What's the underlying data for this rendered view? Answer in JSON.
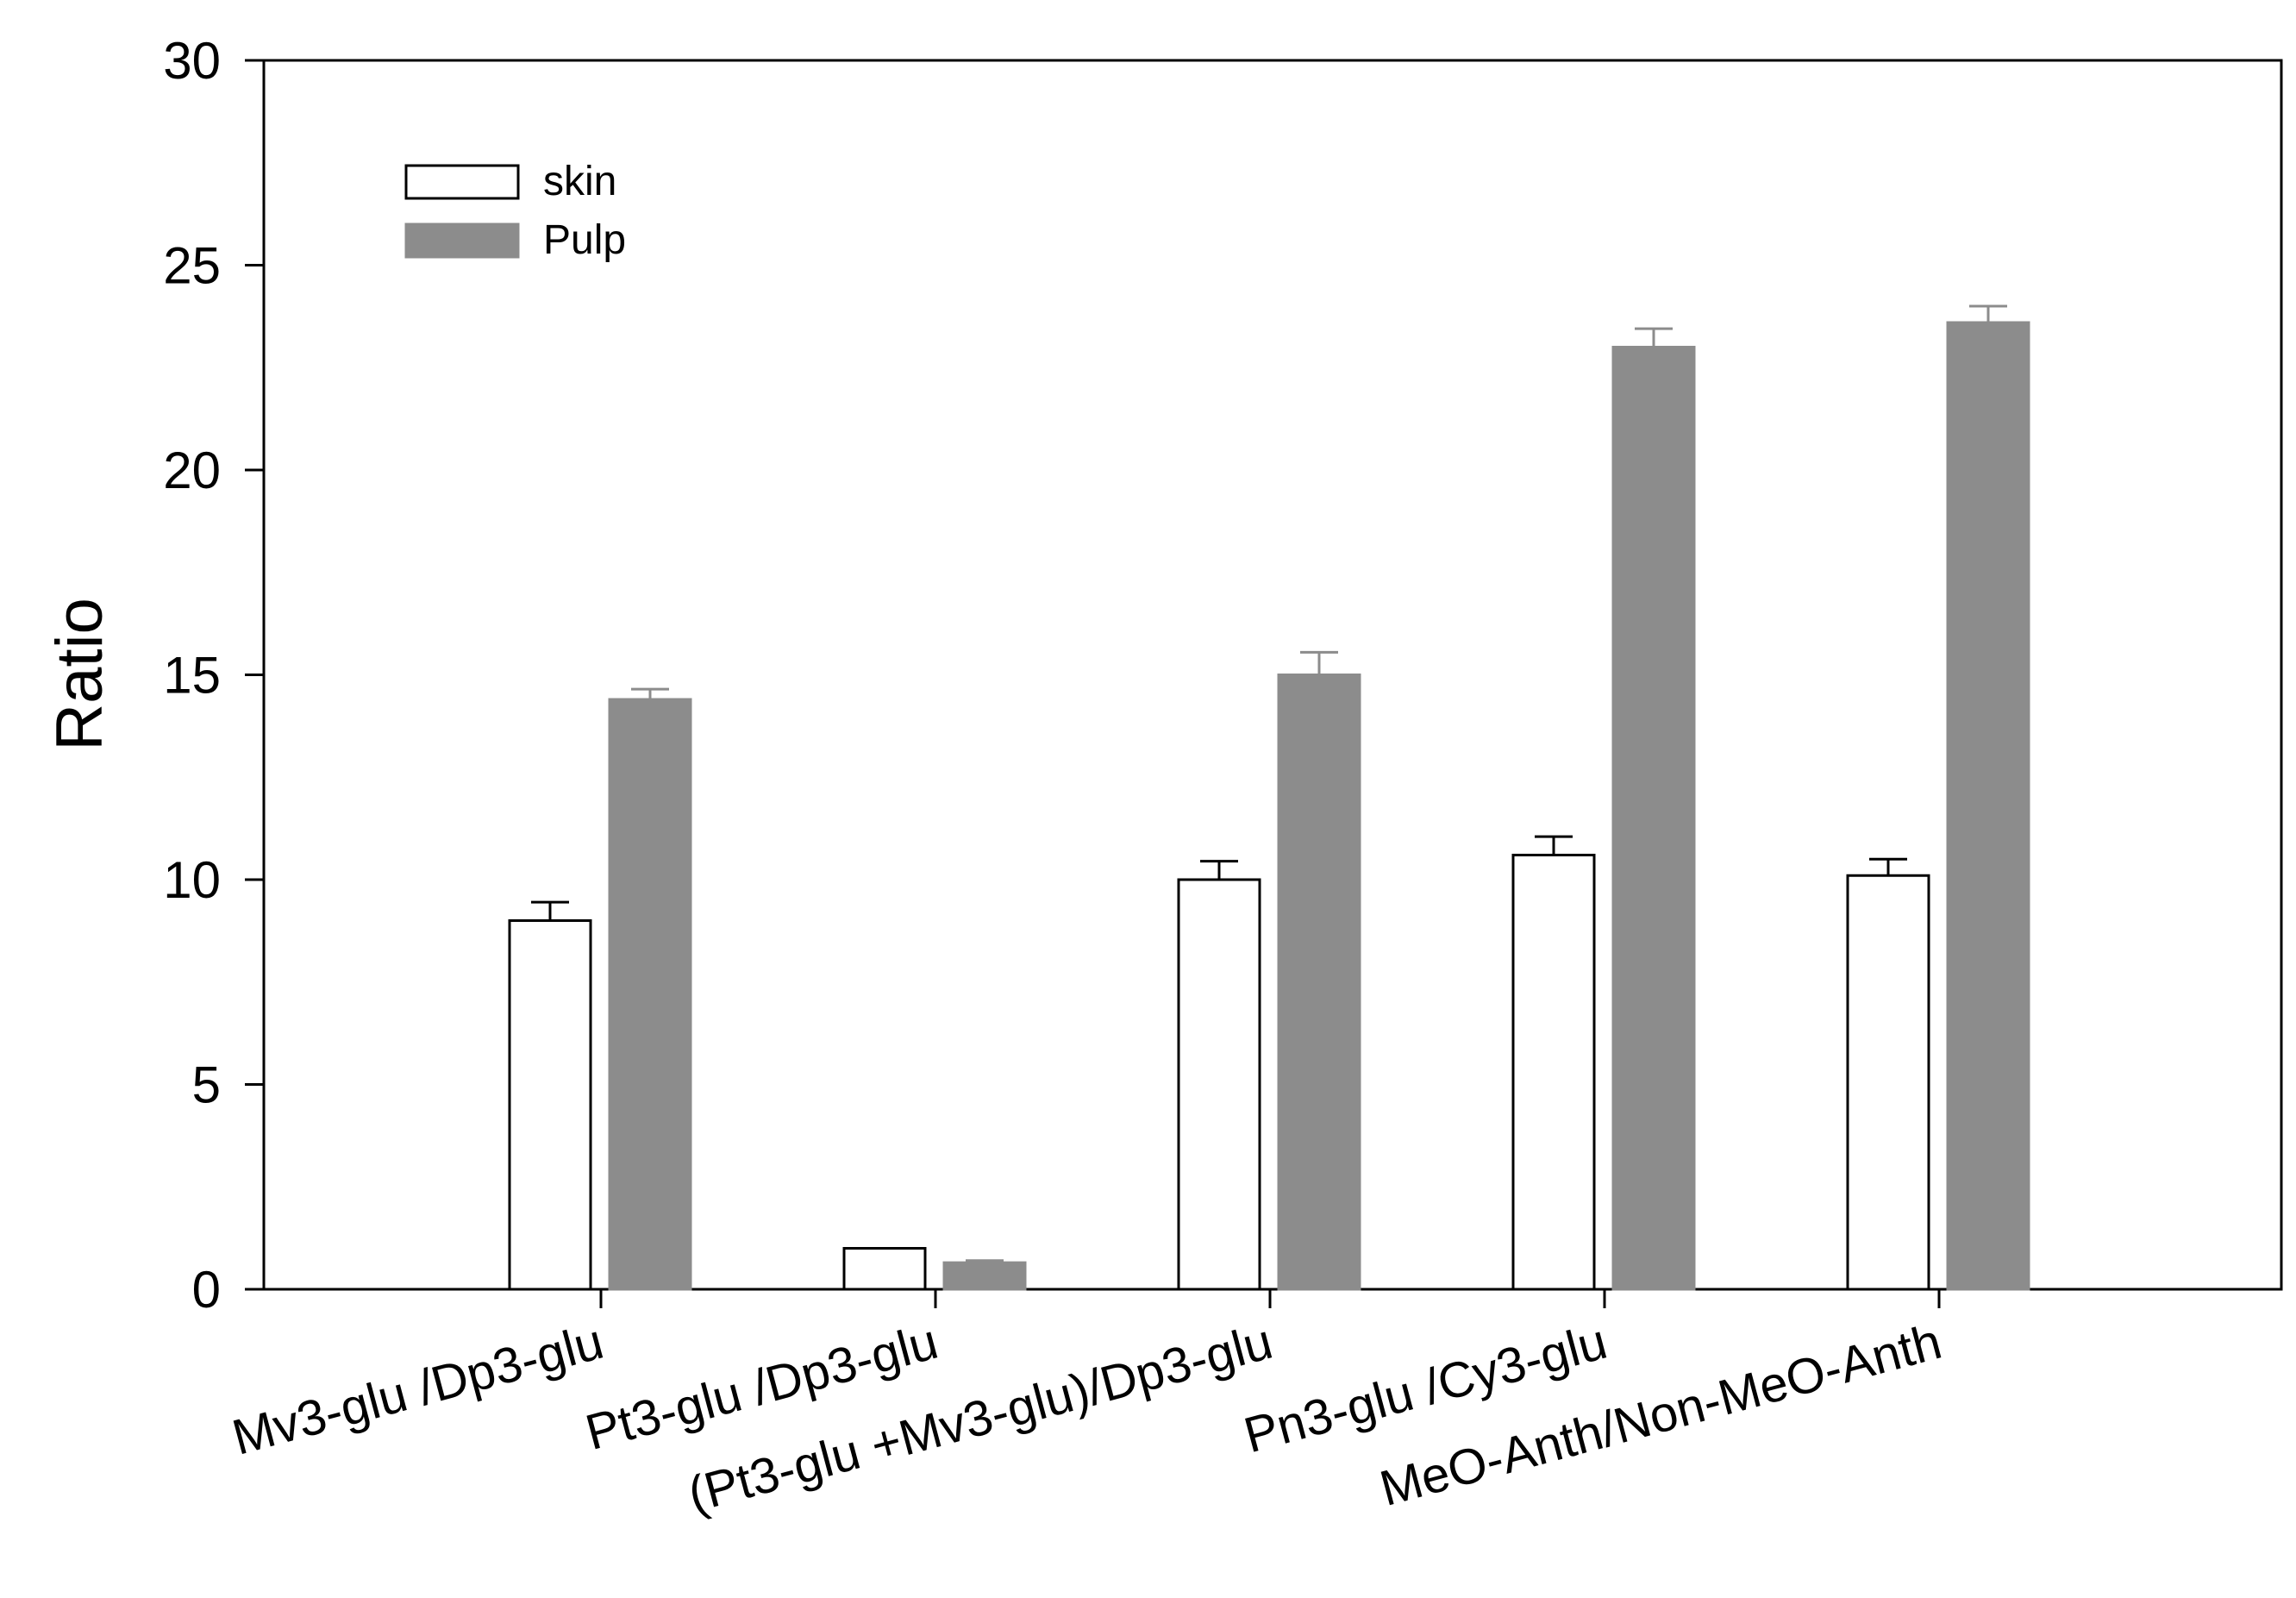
{
  "chart_data": {
    "type": "bar",
    "title": "",
    "xlabel": "",
    "ylabel": "Ratio",
    "ylim": [
      0,
      30
    ],
    "yticks": [
      0,
      5,
      10,
      15,
      20,
      25,
      30
    ],
    "grid": false,
    "legend_position": "top-left",
    "categories": [
      "Mv3-glu /Dp3-glu",
      "Pt3-glu /Dp3-glu",
      "(Pt3-glu +Mv3-glu)/Dp3-glu",
      "Pn3-glu /Cy3-glu",
      "MeO-Anth/Non-MeO-Anth"
    ],
    "series": [
      {
        "name": "skin",
        "fill": "#ffffff",
        "stroke": "#000000",
        "values": [
          9.0,
          1.0,
          10.0,
          10.6,
          10.1
        ],
        "errors": [
          0.45,
          0.0,
          0.45,
          0.45,
          0.4
        ]
      },
      {
        "name": "Pulp",
        "fill": "#8c8c8c",
        "stroke": "#8c8c8c",
        "values": [
          14.4,
          0.65,
          15.0,
          23.0,
          23.6
        ],
        "errors": [
          0.25,
          0.05,
          0.55,
          0.45,
          0.4
        ]
      }
    ]
  }
}
